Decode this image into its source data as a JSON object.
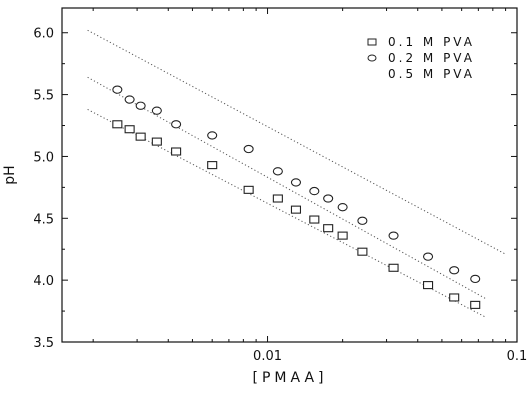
{
  "chart_data": {
    "type": "scatter",
    "title": "",
    "xlabel": "[PMAA]",
    "ylabel": "pH",
    "x_scale": "log",
    "xlim": [
      0.0015,
      0.1
    ],
    "ylim": [
      3.5,
      6.2
    ],
    "x_ticks": [
      0.01,
      0.1
    ],
    "x_tick_labels": [
      "0.01",
      "0.1"
    ],
    "y_ticks": [
      3.5,
      4.0,
      4.5,
      5.0,
      5.5,
      6.0
    ],
    "y_tick_labels": [
      "3.5",
      "4.0",
      "4.5",
      "5.0",
      "5.5",
      "6.0"
    ],
    "grid": false,
    "legend_position": "top-right",
    "series": [
      {
        "name": "0.1 M PVA",
        "marker": "square",
        "x": [
          0.0025,
          0.0028,
          0.0031,
          0.0036,
          0.0043,
          0.006,
          0.0084,
          0.011,
          0.013,
          0.0154,
          0.0175,
          0.02,
          0.024,
          0.032,
          0.044,
          0.056,
          0.068
        ],
        "y": [
          5.26,
          5.22,
          5.16,
          5.12,
          5.04,
          4.93,
          4.73,
          4.66,
          4.57,
          4.49,
          4.42,
          4.36,
          4.23,
          4.1,
          3.96,
          3.86,
          3.8
        ],
        "fit": {
          "x": [
            0.0019,
            0.075
          ],
          "y": [
            5.38,
            3.7
          ]
        }
      },
      {
        "name": "0.2 M PVA",
        "marker": "circle",
        "x": [
          0.0025,
          0.0028,
          0.0031,
          0.0036,
          0.0043,
          0.006,
          0.0084,
          0.011,
          0.013,
          0.0154,
          0.0175,
          0.02,
          0.024,
          0.032,
          0.044,
          0.056,
          0.068
        ],
        "y": [
          5.54,
          5.46,
          5.41,
          5.37,
          5.26,
          5.17,
          5.06,
          4.88,
          4.79,
          4.72,
          4.66,
          4.59,
          4.48,
          4.36,
          4.19,
          4.08,
          4.01
        ],
        "fit": {
          "x": [
            0.0019,
            0.075
          ],
          "y": [
            5.64,
            3.85
          ]
        }
      },
      {
        "name": "0.5 M PVA",
        "marker": "none",
        "x": [],
        "y": [],
        "fit": {
          "x": [
            0.0019,
            0.09
          ],
          "y": [
            6.02,
            4.21
          ]
        }
      }
    ]
  },
  "colors": {
    "axis": "#111111",
    "marker": "#222222",
    "fit_line": "#555555"
  }
}
